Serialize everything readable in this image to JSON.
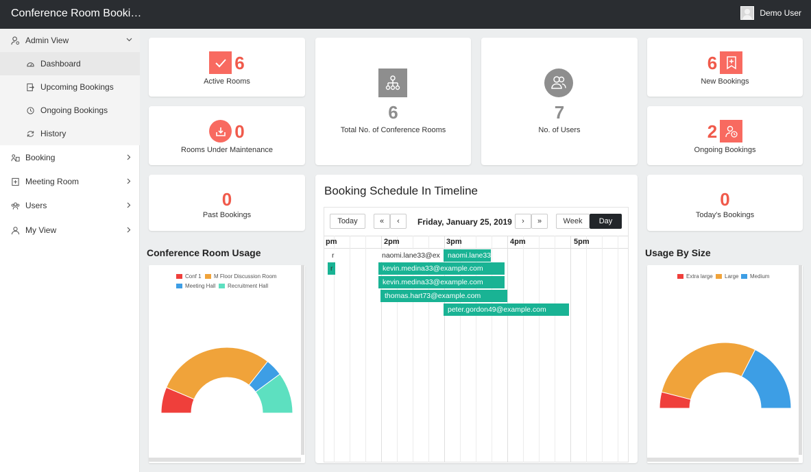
{
  "app": {
    "title": "Conference Room Booki…",
    "user": "Demo User"
  },
  "sidebar": {
    "items": [
      {
        "label": "Admin View"
      },
      {
        "label": "Dashboard"
      },
      {
        "label": "Upcoming Bookings"
      },
      {
        "label": "Ongoing Bookings"
      },
      {
        "label": "History"
      },
      {
        "label": "Booking"
      },
      {
        "label": "Meeting Room"
      },
      {
        "label": "Users"
      },
      {
        "label": "My View"
      }
    ]
  },
  "stats": {
    "active_rooms": {
      "value": "6",
      "label": "Active Rooms"
    },
    "maintenance": {
      "value": "0",
      "label": "Rooms Under Maintenance"
    },
    "past": {
      "value": "0",
      "label": "Past Bookings"
    },
    "total_rooms": {
      "value": "6",
      "label": "Total No. of Conference Rooms"
    },
    "users": {
      "value": "7",
      "label": "No. of Users"
    },
    "new_bookings": {
      "value": "6",
      "label": "New Bookings"
    },
    "ongoing": {
      "value": "2",
      "label": "Ongoing Bookings"
    },
    "today": {
      "value": "0",
      "label": "Today's Bookings"
    }
  },
  "timeline": {
    "title": "Booking Schedule In Timeline",
    "today_label": "Today",
    "prev_prev": "«",
    "prev": "‹",
    "next": "›",
    "next_next": "»",
    "date": "Friday, January 25, 2019",
    "week_label": "Week",
    "day_label": "Day",
    "hours": [
      "pm",
      "2pm",
      "3pm",
      "4pm",
      "5pm"
    ],
    "events": [
      {
        "label": "r"
      },
      {
        "label": "naomi.lane33@ex"
      },
      {
        "label": "naomi.lane33"
      },
      {
        "label": "r"
      },
      {
        "label": "kevin.medina33@example.com"
      },
      {
        "label": "kevin.medina33@example.com"
      },
      {
        "label": "thomas.hart73@example.com"
      },
      {
        "label": "peter.gordon49@example.com"
      }
    ]
  },
  "usage": {
    "title": "Conference Room Usage",
    "legend": [
      {
        "label": "Conf 1",
        "color": "#ef3f3b"
      },
      {
        "label": "M Floor Discussion Room",
        "color": "#f0a33a"
      },
      {
        "label": "Meeting Hall",
        "color": "#3d9ee5"
      },
      {
        "label": "Recruitment Hall",
        "color": "#5de0c0"
      }
    ],
    "values": [
      12,
      55,
      8,
      19
    ]
  },
  "usage_size": {
    "title": "Usage By Size",
    "legend": [
      {
        "label": "Extra large",
        "color": "#ef3f3b"
      },
      {
        "label": "Large",
        "color": "#f0a33a"
      },
      {
        "label": "Medium",
        "color": "#3d9ee5"
      }
    ],
    "values": [
      8,
      57,
      35
    ]
  },
  "colors": {
    "accent": "#f86a60",
    "teal": "#19b394",
    "topbar": "#2a2d31"
  }
}
